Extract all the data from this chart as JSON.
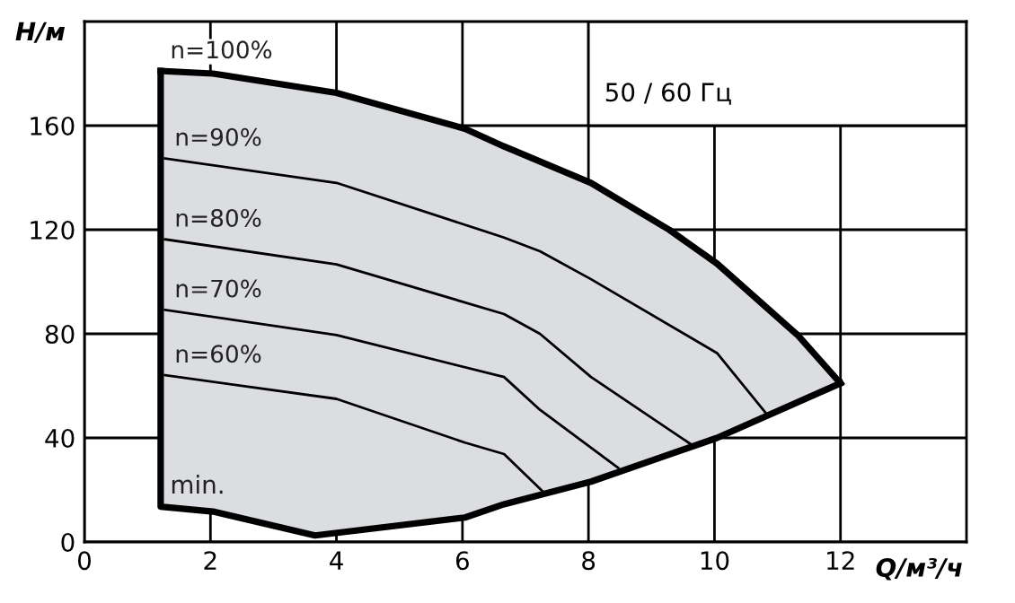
{
  "chart_data": {
    "type": "line",
    "subtitle": "50 / 60 Гц",
    "xlabel": "Q/м³/ч",
    "ylabel": "H/м",
    "xlim": [
      0,
      14
    ],
    "ylim": [
      0,
      200
    ],
    "xticks": [
      0,
      2,
      4,
      6,
      8,
      10,
      12
    ],
    "yticks": [
      0,
      40,
      80,
      120,
      160
    ],
    "grid": true,
    "marker": "none",
    "line_style": "solid",
    "annotations": [
      {
        "text": "min.",
        "x": 1.21,
        "y": 13.6
      }
    ],
    "series": [
      {
        "name": "n=100%",
        "color": "#000000",
        "x": [
          1.21,
          2.04,
          4.0,
          6.04,
          6.66,
          8.04,
          9.28,
          10.04,
          11.32,
          12.0
        ],
        "values": [
          181,
          180,
          172.6,
          158.8,
          152,
          138,
          120,
          107,
          79.5,
          61
        ]
      },
      {
        "name": "n=90%",
        "color": "#000000",
        "x": [
          1.28,
          4.0,
          6.66,
          7.23,
          8.04,
          10.04,
          10.85
        ],
        "values": [
          147.4,
          138,
          117,
          111.7,
          101,
          72.6,
          48.5
        ]
      },
      {
        "name": "n=80%",
        "color": "#000000",
        "x": [
          1.28,
          4.0,
          6.66,
          7.23,
          8.04,
          9.66
        ],
        "values": [
          116.3,
          106.7,
          87.6,
          80,
          63.4,
          37
        ]
      },
      {
        "name": "n=70%",
        "color": "#000000",
        "x": [
          1.28,
          4.0,
          6.66,
          7.23,
          8.47
        ],
        "values": [
          89.2,
          79.5,
          63.4,
          50.8,
          28.5
        ]
      },
      {
        "name": "n=60%",
        "color": "#000000",
        "x": [
          1.28,
          4.0,
          6.04,
          6.66,
          7.28
        ],
        "values": [
          64.1,
          55,
          38.2,
          33.8,
          19.3
        ]
      },
      {
        "color": "#000000",
        "x": [
          12.0,
          10.04,
          8.04,
          6.66,
          6.04,
          3.66,
          2.04,
          1.21,
          1.21
        ],
        "values": [
          61,
          40,
          23.2,
          14.5,
          9.4,
          2.5,
          11.7,
          13.6,
          181
        ]
      }
    ]
  }
}
